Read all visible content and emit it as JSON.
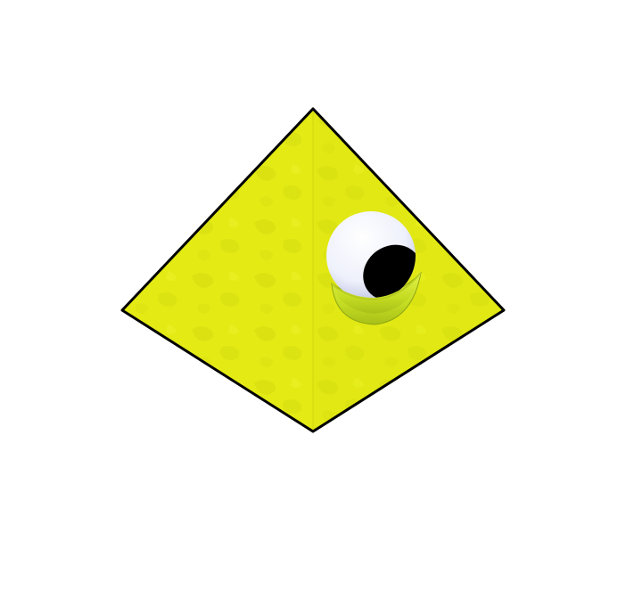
{
  "scene": {
    "subject": "pyramid-with-eye",
    "colors": {
      "background": "#ffffff",
      "pyramid_left_face": "#e4ec13",
      "pyramid_right_face": "#e2e914",
      "pyramid_mottle": "#d0d616",
      "outline": "#000000",
      "eye_white": "#f2f4ff",
      "eye_shadow": "#c9d0ee",
      "pupil": "#000000",
      "eyelid": "#c8e024",
      "eyelid_dark": "#9fb81a"
    }
  }
}
